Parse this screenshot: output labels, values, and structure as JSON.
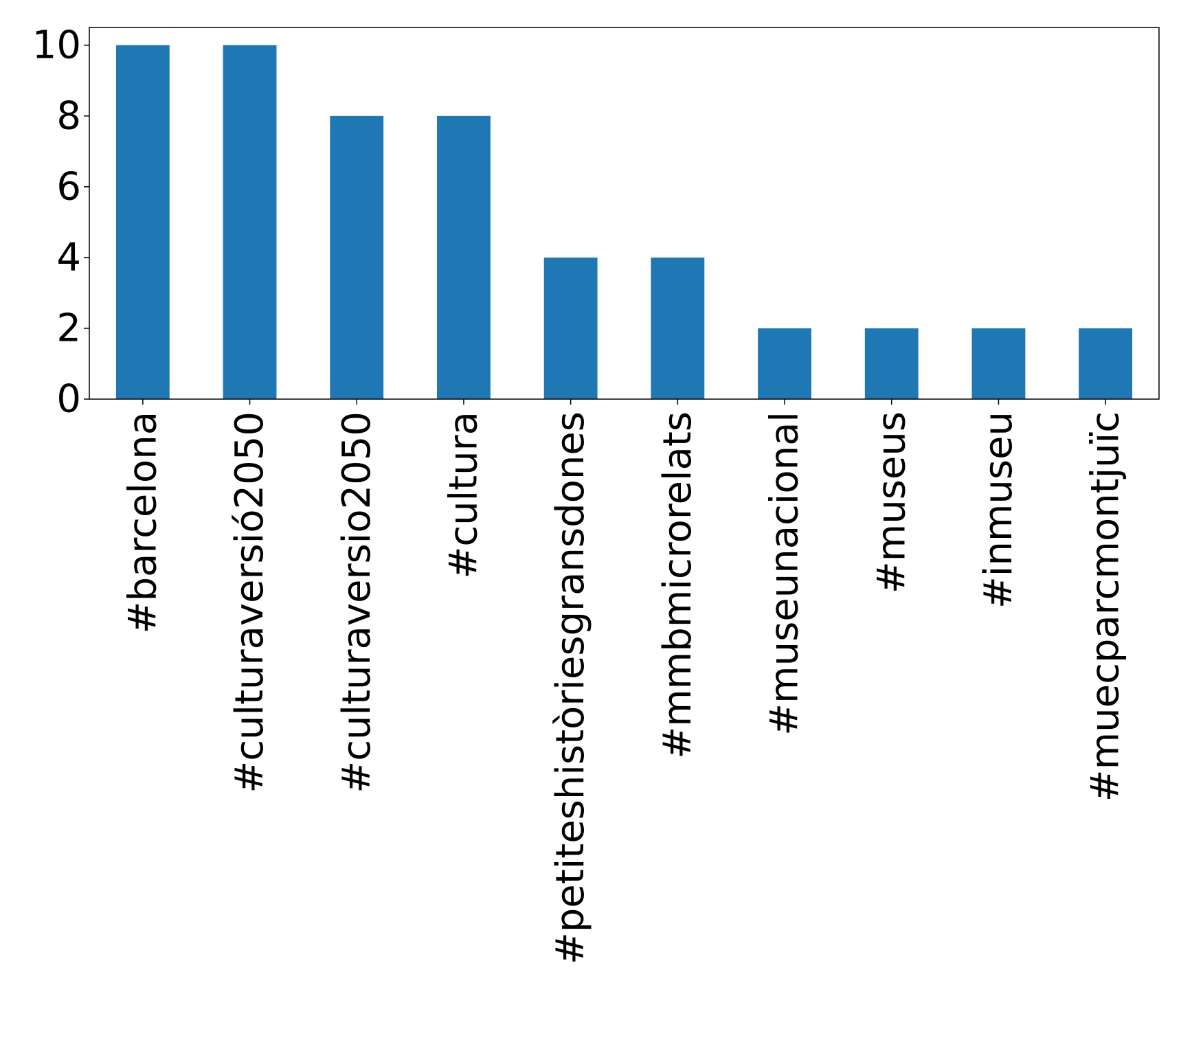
{
  "chart_data": {
    "type": "bar",
    "title": "",
    "xlabel": "",
    "ylabel": "",
    "categories": [
      "#barcelona",
      "#culturaversió2050",
      "#culturaversio2050",
      "#cultura",
      "#petiteshistòriesgransdones",
      "#mmbmicrorelats",
      "#museunacional",
      "#museus",
      "#inmuseu",
      "#muecparcmontjuïc"
    ],
    "values": [
      10,
      10,
      8,
      8,
      4,
      4,
      2,
      2,
      2,
      2
    ],
    "ylim": [
      0,
      10.5
    ],
    "yticks": [
      0,
      2,
      4,
      6,
      8,
      10
    ],
    "grid": false,
    "legend": "none",
    "bar_color": "#1f77b4"
  }
}
